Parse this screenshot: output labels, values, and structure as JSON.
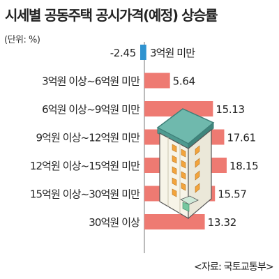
{
  "title": "시세별 공동주택 공시가격(예정) 상승률",
  "unit": "(단위: %)",
  "source": "<자료: 국토교통부>",
  "colors": {
    "positive_bar": "#ee7a72",
    "negative_bar": "#2f93d0",
    "axis": "#777777"
  },
  "chart_data": {
    "type": "bar",
    "orientation": "horizontal",
    "title": "시세별 공동주택 공시가격(예정) 상승률",
    "unit": "%",
    "categories": [
      "3억원 미만",
      "3억원 이상~6억원 미만",
      "6억원 이상~9억원 미만",
      "9억원 이상~12억원 미만",
      "12억원 이상~15억원 미만",
      "15억원 이상~30억원 미만",
      "30억원 이상"
    ],
    "values": [
      -2.45,
      5.64,
      15.13,
      17.61,
      18.15,
      15.57,
      13.32
    ],
    "value_labels": [
      "-2.45",
      "5.64",
      "15.13",
      "17.61",
      "18.15",
      "15.57",
      "13.32"
    ],
    "xlim": [
      -2.45,
      18.15
    ],
    "grid": false,
    "legend": "none"
  }
}
